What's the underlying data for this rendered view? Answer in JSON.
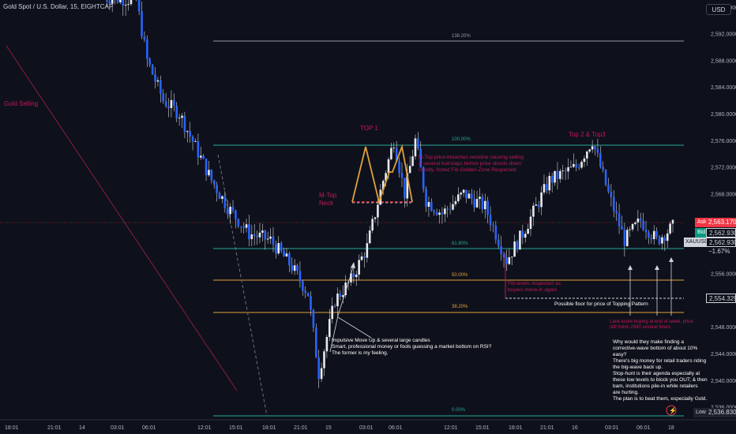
{
  "header": {
    "symbol_title": "Gold Spot / U.S. Dollar, 15, EIGHTCAP",
    "currency_button": "USD"
  },
  "price_scale": {
    "ticks": [
      "2,596.0000",
      "2,592.0000",
      "2,588.0000",
      "2,584.0000",
      "2,580.0000",
      "2,576.0000",
      "2,572.0000",
      "2,568.0000",
      "2,564.0000",
      "2,560.0000",
      "2,556.0000",
      "2,552.0000",
      "2,548.0000",
      "2,544.0000",
      "2,540.0000",
      "2,536.0000"
    ]
  },
  "time_scale": {
    "ticks": [
      "18:01",
      "21:01",
      "14",
      "03:01",
      "06:01",
      "12:01",
      "15:01",
      "18:01",
      "21:01",
      "15",
      "03:01",
      "06:01",
      "12:01",
      "15:01",
      "18:01",
      "21:01",
      "16",
      "03:01",
      "06:01",
      "18"
    ]
  },
  "quote": {
    "ask_label": "Ask",
    "ask_price": "2,563.1700",
    "bid_label": "Bid",
    "bid_price": "2,562.9300",
    "symbol": "XAUUSD",
    "change": "−1.67%",
    "floor_price": "2,554.3297",
    "low_label": "Low",
    "low_price": "2,536.8300"
  },
  "fib_levels": {
    "l1382": "138.20%",
    "l100": "100.00%",
    "l618": "61.80%",
    "l50": "50.00%",
    "l382": "38.20%",
    "l0": "0.00%"
  },
  "annotations": {
    "gold_selling": "Gold Selling",
    "top1": "TOP 1",
    "top23": "Top 2 & Top3",
    "mtop_neck": "M-Top\nNeck",
    "mtop_text": "M-Top price-breaches neckline causing selling\n& several bull-traps before price shoots down\nrapidly. Noted Fib-Golden-Zone Respected",
    "fib_respected": "Fib-levels respected as\nbuyers move-in again",
    "floor_text": "Possible floor for price of Topping Pattern",
    "lack_buying": "Lack-lustre buying at end of week, price\nstill holds 2560 several times.",
    "impulsive": "Impulsive Move Up & several large candles\nSmart, professional money or fools guessing a market bottom on RSI?\nThe former is my feeling.",
    "why_text": "Why would they make finding a\ncorrective-wave bottom of about 10%\neasy?\nThere's big money for retail traders riding\nthe big-wave back up.\nStop-hunt is their agenda especially at\nthese low levels to block you OUT; & then\nbam, institutions pile-in while retailers\nare hurting.\nThe plan is to beat them, especially Gold."
  },
  "colors": {
    "background": "#0e111b",
    "candle": "#2962ff",
    "fib_blue": "#26a69a",
    "fib_orange": "#e0a03a",
    "annotation_red": "#c2185b",
    "ask_red": "#f23645",
    "bid_green": "#089981"
  },
  "chart_data": {
    "type": "candlestick",
    "symbol": "XAUUSD",
    "timeframe": "15",
    "ylim": [
      2535,
      2598
    ],
    "x_ticks": [
      "18:01",
      "21:01",
      "14",
      "03:01",
      "06:01",
      "12:01",
      "15:01",
      "18:01",
      "21:01",
      "15",
      "03:01",
      "06:01",
      "12:01",
      "15:01",
      "18:01",
      "21:01",
      "16",
      "03:01",
      "06:01",
      "18"
    ],
    "close_path": [
      {
        "t": 0,
        "v": 2597.5
      },
      {
        "t": 12,
        "v": 2597
      },
      {
        "t": 16,
        "v": 2588
      },
      {
        "t": 22,
        "v": 2582
      },
      {
        "t": 28,
        "v": 2580
      },
      {
        "t": 34,
        "v": 2575
      },
      {
        "t": 40,
        "v": 2570
      },
      {
        "t": 46,
        "v": 2566
      },
      {
        "t": 54,
        "v": 2562
      },
      {
        "t": 62,
        "v": 2561
      },
      {
        "t": 70,
        "v": 2557
      },
      {
        "t": 76,
        "v": 2553
      },
      {
        "t": 80,
        "v": 2541
      },
      {
        "t": 86,
        "v": 2552
      },
      {
        "t": 92,
        "v": 2555
      },
      {
        "t": 98,
        "v": 2560
      },
      {
        "t": 104,
        "v": 2570
      },
      {
        "t": 108,
        "v": 2576
      },
      {
        "t": 112,
        "v": 2568
      },
      {
        "t": 116,
        "v": 2576
      },
      {
        "t": 120,
        "v": 2567
      },
      {
        "t": 126,
        "v": 2565
      },
      {
        "t": 134,
        "v": 2568
      },
      {
        "t": 142,
        "v": 2566
      },
      {
        "t": 150,
        "v": 2558
      },
      {
        "t": 156,
        "v": 2562
      },
      {
        "t": 166,
        "v": 2570
      },
      {
        "t": 176,
        "v": 2572
      },
      {
        "t": 182,
        "v": 2576
      },
      {
        "t": 188,
        "v": 2568
      },
      {
        "t": 194,
        "v": 2561
      },
      {
        "t": 200,
        "v": 2564
      },
      {
        "t": 206,
        "v": 2561
      },
      {
        "t": 212,
        "v": 2563
      }
    ],
    "price_lines": [
      {
        "name": "ask",
        "value": 2563.17
      },
      {
        "name": "bid",
        "value": 2562.93
      },
      {
        "name": "floor",
        "value": 2554.3297
      },
      {
        "name": "low",
        "value": 2536.83
      }
    ],
    "fib_retracement": [
      {
        "level": "138.20%",
        "price": 2592.6
      },
      {
        "level": "100.00%",
        "price": 2577.4
      },
      {
        "level": "61.80%",
        "price": 2561.2
      },
      {
        "level": "50.00%",
        "price": 2556.7
      },
      {
        "level": "38.20%",
        "price": 2552.1
      },
      {
        "level": "0.00%",
        "price": 2536.0
      }
    ]
  }
}
